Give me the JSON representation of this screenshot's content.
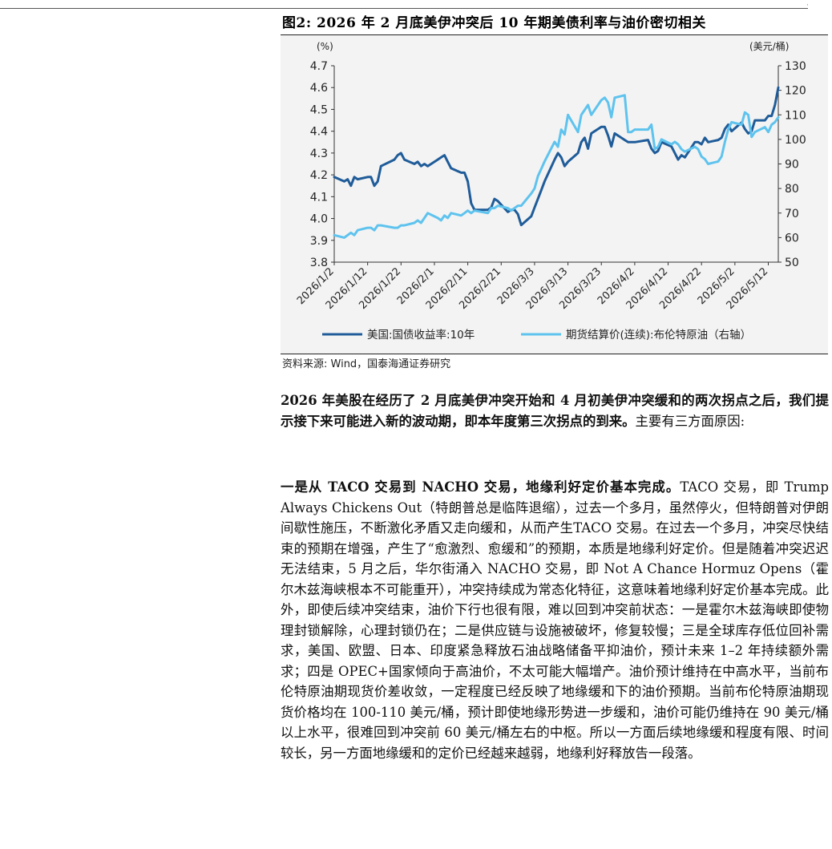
{
  "header": {
    "corner_mark": "·"
  },
  "figure": {
    "title": "图2:  2026 年 2 月底美伊冲突后 10 年期美债利率与油价密切相关",
    "source": "资料来源:  Wind，国泰海通证券研究"
  },
  "chart_data": {
    "type": "line",
    "ylabel_left": "(%)",
    "ylabel_right": "(美元/桶)",
    "ylim_left": [
      3.8,
      4.7
    ],
    "ylim_right": [
      50,
      130
    ],
    "yticks_left": [
      "3.8",
      "3.9",
      "4.0",
      "4.1",
      "4.2",
      "4.3",
      "4.4",
      "4.5",
      "4.6",
      "4.7"
    ],
    "yticks_right": [
      "50",
      "60",
      "70",
      "80",
      "90",
      "100",
      "110",
      "120",
      "130"
    ],
    "x_tick_labels": [
      "2026/1/2",
      "2026/1/12",
      "2026/1/22",
      "2026/2/1",
      "2026/2/11",
      "2026/2/21",
      "2026/3/3",
      "2026/3/13",
      "2026/3/23",
      "2026/4/2",
      "2026/4/12",
      "2026/4/22",
      "2026/5/2",
      "2026/5/12"
    ],
    "grid": false,
    "legend_position": "bottom",
    "series": [
      {
        "name": "美国:国债收益率:10年",
        "axis": "left",
        "color": "#1f5c99",
        "x": [
          "2026/1/2",
          "2026/1/5",
          "2026/1/6",
          "2026/1/7",
          "2026/1/8",
          "2026/1/9",
          "2026/1/12",
          "2026/1/13",
          "2026/1/14",
          "2026/1/15",
          "2026/1/16",
          "2026/1/20",
          "2026/1/21",
          "2026/1/22",
          "2026/1/23",
          "2026/1/26",
          "2026/1/27",
          "2026/1/28",
          "2026/1/29",
          "2026/1/30",
          "2026/2/2",
          "2026/2/3",
          "2026/2/4",
          "2026/2/5",
          "2026/2/6",
          "2026/2/9",
          "2026/2/10",
          "2026/2/11",
          "2026/2/12",
          "2026/2/13",
          "2026/2/17",
          "2026/2/18",
          "2026/2/19",
          "2026/2/20",
          "2026/2/23",
          "2026/2/24",
          "2026/2/25",
          "2026/2/26",
          "2026/2/27",
          "2026/3/2",
          "2026/3/3",
          "2026/3/4",
          "2026/3/5",
          "2026/3/6",
          "2026/3/9",
          "2026/3/10",
          "2026/3/11",
          "2026/3/12",
          "2026/3/13",
          "2026/3/16",
          "2026/3/17",
          "2026/3/18",
          "2026/3/19",
          "2026/3/20",
          "2026/3/23",
          "2026/3/24",
          "2026/3/25",
          "2026/3/26",
          "2026/3/27",
          "2026/3/30",
          "2026/3/31",
          "2026/4/1",
          "2026/4/2",
          "2026/4/6",
          "2026/4/7",
          "2026/4/8",
          "2026/4/9",
          "2026/4/10",
          "2026/4/13",
          "2026/4/14",
          "2026/4/15",
          "2026/4/16",
          "2026/4/17",
          "2026/4/20",
          "2026/4/21",
          "2026/4/22",
          "2026/4/23",
          "2026/4/24",
          "2026/4/27",
          "2026/4/28",
          "2026/4/29",
          "2026/4/30",
          "2026/5/1",
          "2026/5/4",
          "2026/5/5",
          "2026/5/6",
          "2026/5/7",
          "2026/5/8",
          "2026/5/11",
          "2026/5/12",
          "2026/5/13",
          "2026/5/14",
          "2026/5/15"
        ],
        "values": [
          4.19,
          4.17,
          4.18,
          4.15,
          4.19,
          4.18,
          4.19,
          4.19,
          4.15,
          4.17,
          4.24,
          4.27,
          4.29,
          4.3,
          4.27,
          4.25,
          4.26,
          4.24,
          4.25,
          4.24,
          4.27,
          4.28,
          4.29,
          4.26,
          4.23,
          4.21,
          4.21,
          4.17,
          4.07,
          4.04,
          4.04,
          4.05,
          4.09,
          4.08,
          4.03,
          4.04,
          4.04,
          4.02,
          3.97,
          4.01,
          4.05,
          4.09,
          4.13,
          4.17,
          4.27,
          4.3,
          4.28,
          4.24,
          4.26,
          4.3,
          4.35,
          4.37,
          4.32,
          4.39,
          4.42,
          4.42,
          4.38,
          4.33,
          4.39,
          4.36,
          4.35,
          4.35,
          4.35,
          4.36,
          4.32,
          4.3,
          4.31,
          4.35,
          4.33,
          4.3,
          4.27,
          4.29,
          4.28,
          4.35,
          4.35,
          4.34,
          4.37,
          4.35,
          4.36,
          4.37,
          4.41,
          4.43,
          4.4,
          4.44,
          4.41,
          4.39,
          4.4,
          4.45,
          4.45,
          4.47,
          4.47,
          4.52,
          4.6
        ]
      },
      {
        "name": "期货结算价(连续):布伦特原油（右轴）",
        "axis": "right",
        "color": "#5ec3ee",
        "x": [
          "2026/1/2",
          "2026/1/5",
          "2026/1/6",
          "2026/1/7",
          "2026/1/8",
          "2026/1/9",
          "2026/1/12",
          "2026/1/13",
          "2026/1/14",
          "2026/1/15",
          "2026/1/16",
          "2026/1/20",
          "2026/1/21",
          "2026/1/22",
          "2026/1/23",
          "2026/1/26",
          "2026/1/27",
          "2026/1/28",
          "2026/1/29",
          "2026/1/30",
          "2026/2/2",
          "2026/2/3",
          "2026/2/4",
          "2026/2/5",
          "2026/2/6",
          "2026/2/9",
          "2026/2/10",
          "2026/2/11",
          "2026/2/12",
          "2026/2/13",
          "2026/2/17",
          "2026/2/18",
          "2026/2/19",
          "2026/2/20",
          "2026/2/23",
          "2026/2/24",
          "2026/2/25",
          "2026/2/26",
          "2026/2/27",
          "2026/3/2",
          "2026/3/3",
          "2026/3/4",
          "2026/3/5",
          "2026/3/6",
          "2026/3/9",
          "2026/3/10",
          "2026/3/11",
          "2026/3/12",
          "2026/3/13",
          "2026/3/16",
          "2026/3/17",
          "2026/3/18",
          "2026/3/19",
          "2026/3/20",
          "2026/3/23",
          "2026/3/24",
          "2026/3/25",
          "2026/3/26",
          "2026/3/27",
          "2026/3/30",
          "2026/3/31",
          "2026/4/1",
          "2026/4/2",
          "2026/4/6",
          "2026/4/7",
          "2026/4/8",
          "2026/4/9",
          "2026/4/10",
          "2026/4/13",
          "2026/4/14",
          "2026/4/15",
          "2026/4/16",
          "2026/4/17",
          "2026/4/20",
          "2026/4/21",
          "2026/4/22",
          "2026/4/23",
          "2026/4/24",
          "2026/4/27",
          "2026/4/28",
          "2026/4/29",
          "2026/4/30",
          "2026/5/1",
          "2026/5/4",
          "2026/5/5",
          "2026/5/6",
          "2026/5/7",
          "2026/5/8",
          "2026/5/11",
          "2026/5/12",
          "2026/5/13",
          "2026/5/14",
          "2026/5/15"
        ],
        "values": [
          61,
          60,
          61,
          62,
          61,
          63,
          64,
          64,
          63,
          65,
          65,
          64,
          64,
          65,
          65,
          66,
          67,
          66,
          68,
          70,
          68,
          67,
          69,
          68,
          70,
          69,
          70,
          71,
          70,
          71,
          70,
          72,
          72,
          73,
          72,
          71,
          72,
          73,
          73,
          78,
          80,
          85,
          88,
          91,
          99,
          97,
          104,
          102,
          110,
          103,
          110,
          112,
          114,
          110,
          116,
          117,
          115,
          109,
          117,
          118,
          103,
          103,
          104,
          104,
          106,
          96,
          97,
          100,
          98,
          99,
          98,
          96,
          95,
          97,
          96,
          93,
          92,
          90,
          91,
          93,
          99,
          104,
          107,
          106,
          111,
          110,
          101,
          103,
          105,
          103,
          106,
          107,
          109
        ]
      }
    ]
  },
  "body": {
    "p1_lead": "2026 年美股在经历了 2 月底美伊冲突开始和 4 月初美伊冲突缓和的两次拐点之后，我们提示接下来可能进入新的波动期，即本年度第三次拐点的到来。",
    "p1_rest": "主要有三方面原因:",
    "p2_lead": "一是从 TACO 交易到 NACHO 交易，地缘利好定价基本完成。",
    "p2_rest": "TACO 交易，即 Trump Always Chickens Out（特朗普总是临阵退缩），过去一个多月，虽然停火，但特朗普对伊朗间歇性施压，不断激化矛盾又走向缓和，从而产生TACO 交易。在过去一个多月，冲突尽快结束的预期在增强，产生了“愈激烈、愈缓和”的预期，本质是地缘利好定价。但是随着冲突迟迟无法结束，5 月之后，华尔街涌入 NACHO 交易，即 Not A Chance Hormuz Opens（霍尔木兹海峡根本不可能重开），冲突持续成为常态化特征，这意味着地缘利好定价基本完成。此外，即使后续冲突结束，油价下行也很有限，难以回到冲突前状态：一是霍尔木兹海峡即使物理封锁解除，心理封锁仍在；二是供应链与设施被破坏，修复较慢；三是全球库存低位回补需求，美国、欧盟、日本、印度紧急释放石油战略储备平抑油价，预计未来 1–2 年持续额外需求；四是 OPEC+国家倾向于高油价，不太可能大幅增产。油价预计维持在中高水平，当前布伦特原油期现货价差收敛，一定程度已经反映了地缘缓和下的油价预期。当前布伦特原油期现货价格均在 100-110 美元/桶，预计即使地缘形势进一步缓和，油价可能仍维持在 90 美元/桶以上水平，很难回到冲突前 60 美元/桶左右的中枢。所以一方面后续地缘缓和程度有限、时间较长，另一方面地缘缓和的定价已经越来越弱，地缘利好释放告一段落。"
  }
}
